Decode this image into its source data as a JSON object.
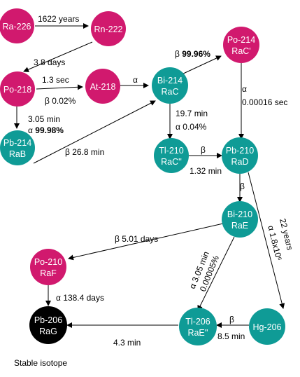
{
  "colors": {
    "magenta": "#d1196e",
    "teal": "#0f9b96",
    "black": "#000000",
    "edge": "#000000"
  },
  "nodes": {
    "ra226": {
      "line1": "Ra-226",
      "line2": ""
    },
    "rn222": {
      "line1": "Rn-222",
      "line2": ""
    },
    "po218": {
      "line1": "Po-218",
      "line2": ""
    },
    "at218": {
      "line1": "At-218",
      "line2": ""
    },
    "pb214": {
      "line1": "Pb-214",
      "line2": "RaB"
    },
    "bi214": {
      "line1": "Bi-214",
      "line2": "RaC"
    },
    "po214": {
      "line1": "Po-214",
      "line2": "RaC'"
    },
    "tl210": {
      "line1": "Tl-210",
      "line2": "RaC''"
    },
    "pb210": {
      "line1": "Pb-210",
      "line2": "RaD"
    },
    "bi210": {
      "line1": "Bi-210",
      "line2": "RaE"
    },
    "po210": {
      "line1": "Po-210",
      "line2": "RaF"
    },
    "pb206": {
      "line1": "Pb-206",
      "line2": "RaG"
    },
    "tl206": {
      "line1": "Tl-206",
      "line2": "RaE''"
    },
    "hg206": {
      "line1": "Hg-206",
      "line2": ""
    }
  },
  "labels": {
    "ra_rn": "1622 years",
    "rn_po": "3.8 days",
    "po_at": "1.3 sec",
    "po218_beta": "β 0.02%",
    "po218_time": "3.05 min",
    "po218_alpha_sym": "α",
    "po218_alpha_pct": "99.98%",
    "at_bi": "α",
    "pb214_beta": "β 26.8 min",
    "bi214_beta_sym": "β",
    "bi214_beta_pct": "99.96%",
    "bi214_time": "19.7 min",
    "bi214_alpha": "α 0.04%",
    "po214_alpha": "α",
    "po214_time": "0.00016 sec",
    "tl_pb_beta": "β",
    "tl_pb_time": "1.32 min",
    "pb210_beta": "β",
    "pb210_time": "22 years",
    "pb210_alpha": "α 1.8x10⁶",
    "bi210_beta": "β 5.01 days",
    "bi210_alpha_time": "α 3.05 min",
    "bi210_alpha_pct": "0.00005%",
    "po210_alpha": "α 138.4 days",
    "hg_tl_beta": "β",
    "hg_tl_time": "8.5 min",
    "tl_pb206_time": "4.3 min",
    "stable": "Stable isotope"
  }
}
